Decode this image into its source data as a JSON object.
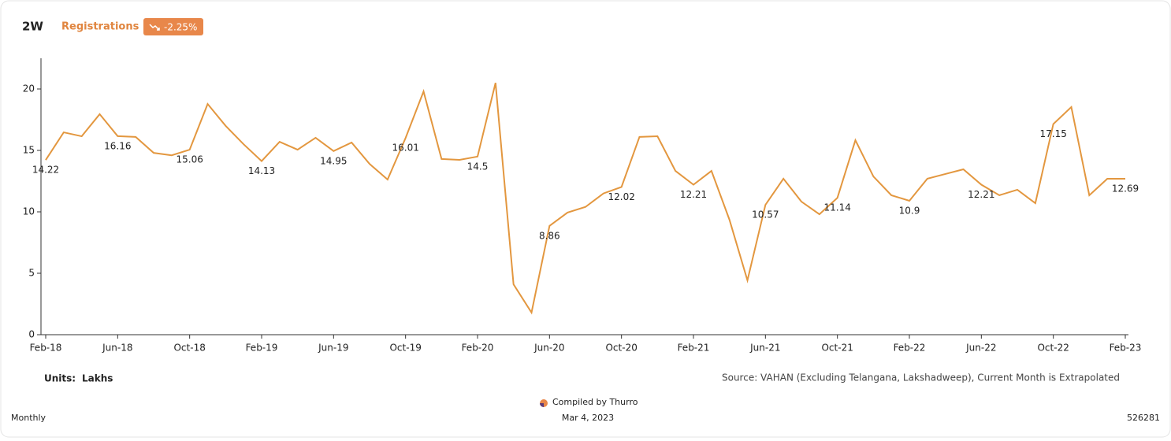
{
  "chart_data": {
    "type": "line",
    "title": "2W",
    "change": "-2.25%",
    "series": [
      {
        "name": "Registrations",
        "color": "#e3973f",
        "values": [
          14.22,
          16.47,
          16.15,
          17.95,
          16.16,
          16.1,
          14.8,
          14.6,
          15.06,
          18.78,
          17.0,
          15.5,
          14.13,
          15.7,
          15.06,
          16.03,
          14.95,
          15.64,
          13.9,
          12.63,
          16.01,
          19.8,
          14.3,
          14.23,
          14.5,
          20.5,
          4.1,
          1.8,
          8.86,
          9.94,
          10.4,
          11.5,
          12.02,
          16.1,
          16.15,
          13.33,
          12.21,
          13.33,
          9.36,
          4.42,
          10.57,
          12.7,
          10.83,
          9.8,
          11.14,
          15.83,
          12.88,
          11.35,
          10.9,
          12.7,
          13.08,
          13.46,
          12.21,
          11.35,
          11.8,
          10.7,
          17.15,
          18.53,
          11.35,
          12.69,
          12.69
        ]
      }
    ],
    "categories": [
      "Feb-18",
      null,
      null,
      null,
      "Jun-18",
      null,
      null,
      null,
      "Oct-18",
      null,
      null,
      null,
      "Feb-19",
      null,
      null,
      null,
      "Jun-19",
      null,
      null,
      null,
      "Oct-19",
      null,
      null,
      null,
      "Feb-20",
      null,
      null,
      null,
      "Jun-20",
      null,
      null,
      null,
      "Oct-20",
      null,
      null,
      null,
      "Feb-21",
      null,
      null,
      null,
      "Jun-21",
      null,
      null,
      null,
      "Oct-21",
      null,
      null,
      null,
      "Feb-22",
      null,
      null,
      null,
      "Jun-22",
      null,
      null,
      null,
      "Oct-22",
      null,
      null,
      null,
      "Feb-23"
    ],
    "ylim": [
      0,
      22.5
    ],
    "yticks": [
      0,
      5,
      10,
      15,
      20
    ],
    "grid": false,
    "units_label": "Units:",
    "units": "Lakhs",
    "source": "Source: VAHAN (Excluding Telangana, Lakshadweep), Current Month is Extrapolated"
  },
  "footer": {
    "compiled": "Compiled by Thurro",
    "date": "Mar 4, 2023",
    "frequency": "Monthly",
    "id": "526281"
  }
}
